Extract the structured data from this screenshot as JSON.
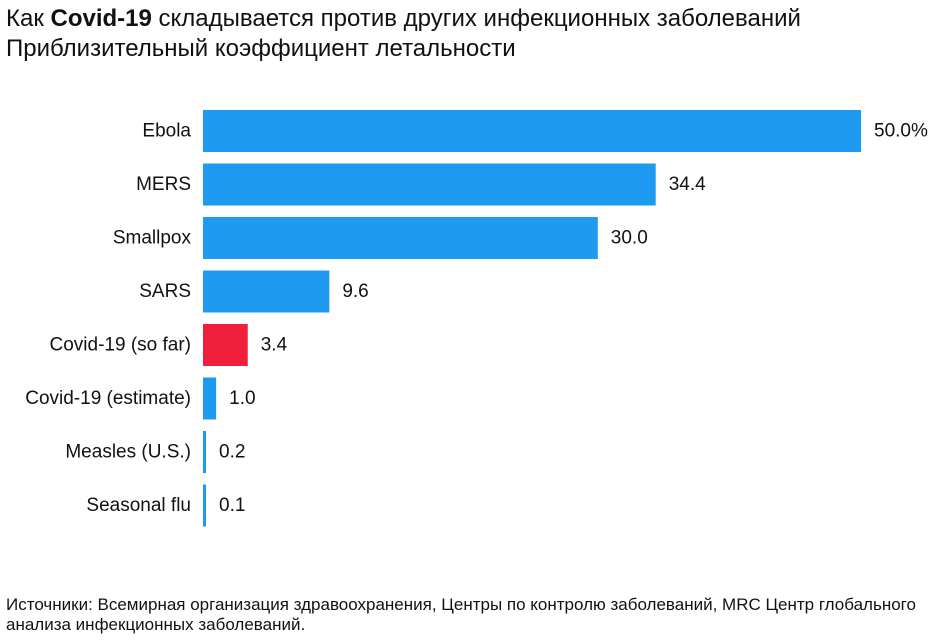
{
  "title": {
    "prefix": "Как ",
    "bold": "Covid-19",
    "suffix": " складывается против других инфекционных заболеваний"
  },
  "subtitle": "Приблизительный коэффициент летальности",
  "source": "Источники: Всемирная организация здравоохранения, Центры по контролю заболеваний, MRC Центр глобального анализа инфекционных заболеваний.",
  "colors": {
    "default_bar": "#1e9bf0",
    "highlight_bar": "#f0203c"
  },
  "chart_data": {
    "type": "bar",
    "orientation": "horizontal",
    "categories": [
      "Ebola",
      "MERS",
      "Smallpox",
      "SARS",
      "Covid-19 (so far)",
      "Covid-19 (estimate)",
      "Measles (U.S.)",
      "Seasonal flu"
    ],
    "values": [
      50.0,
      34.4,
      30.0,
      9.6,
      3.4,
      1.0,
      0.2,
      0.1
    ],
    "value_labels": [
      "50.0%",
      "34.4",
      "30.0",
      "9.6",
      "3.4",
      "1.0",
      "0.2",
      "0.1"
    ],
    "highlight": [
      "Covid-19 (so far)"
    ],
    "xlim": [
      0,
      50
    ],
    "grid": false,
    "legend": "none"
  }
}
